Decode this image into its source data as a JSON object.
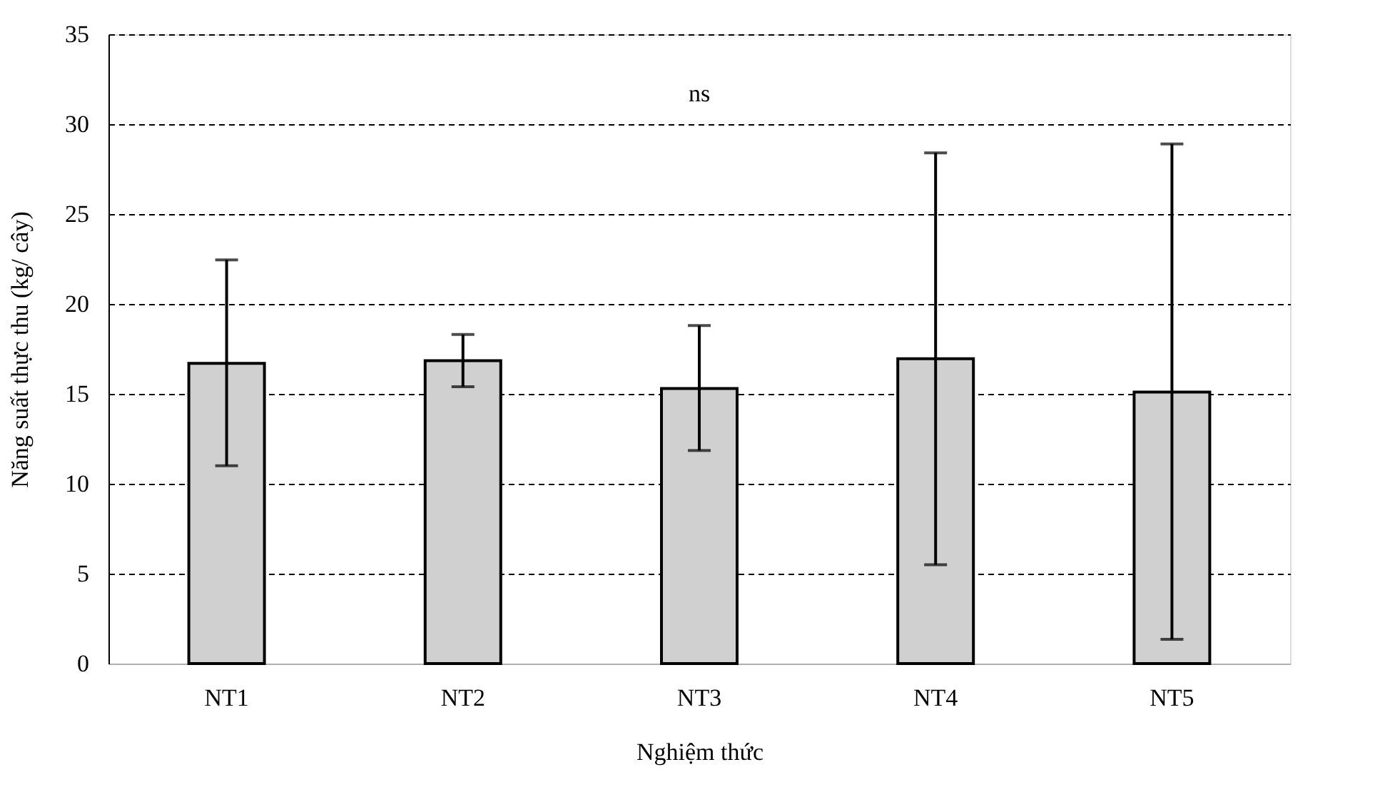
{
  "chart_data": {
    "type": "bar",
    "xlabel": "Nghiệm thức",
    "ylabel": "Năng suất thực thu (kg/ cây)",
    "categories": [
      "NT1",
      "NT2",
      "NT3",
      "NT4",
      "NT5"
    ],
    "values": [
      16.7,
      16.85,
      15.3,
      16.95,
      15.1
    ],
    "errors": [
      [
        11.0,
        22.45
      ],
      [
        15.4,
        18.3
      ],
      [
        11.85,
        18.8
      ],
      [
        5.5,
        28.4
      ],
      [
        1.35,
        28.9
      ]
    ],
    "color": "#d0d0d0",
    "ylim": [
      0,
      35
    ],
    "yticks": [
      0,
      5,
      10,
      15,
      20,
      25,
      30,
      35
    ],
    "grid": "y",
    "annotations": [
      "ns"
    ]
  }
}
